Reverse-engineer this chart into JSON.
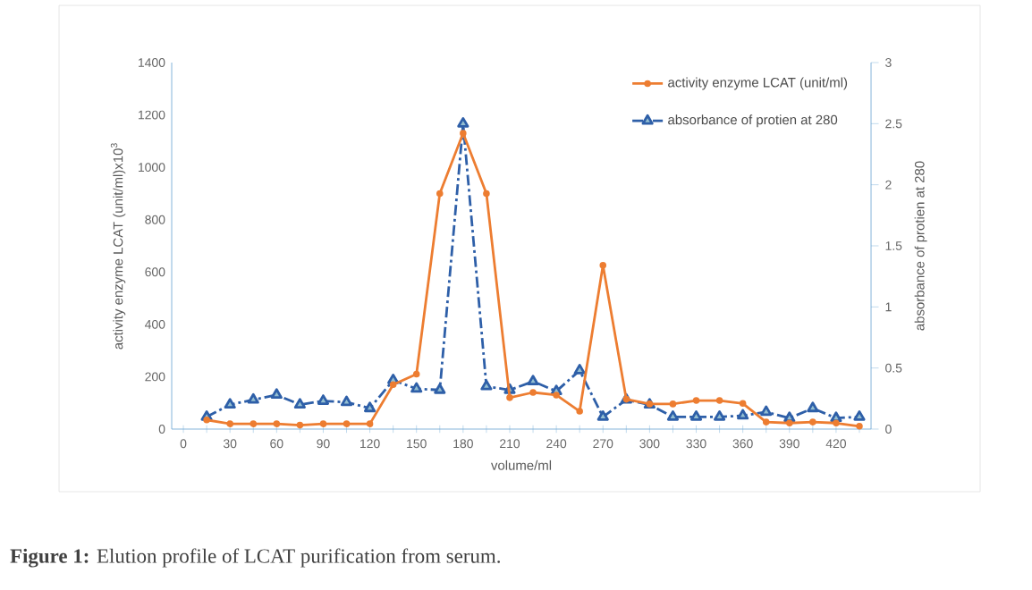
{
  "chart_data": {
    "type": "line",
    "xlabel": "volume/ml",
    "ylabel": "activity enzyme LCAT (unit/ml)x10$^{3}$",
    "y2label": "absorbance of protien at 280",
    "x": [
      15,
      30,
      45,
      60,
      75,
      90,
      105,
      120,
      135,
      150,
      165,
      180,
      195,
      210,
      225,
      240,
      255,
      270,
      285,
      300,
      315,
      330,
      345,
      360,
      375,
      390,
      405,
      420,
      435
    ],
    "series": [
      {
        "name": "activity enzyme LCAT (unit/ml)",
        "color": "#ed7d31",
        "marker": "circle",
        "line_style": "solid",
        "values": [
          35,
          20,
          20,
          20,
          15,
          20,
          20,
          20,
          170,
          210,
          900,
          1130,
          900,
          120,
          140,
          130,
          68,
          626,
          114,
          96,
          96,
          109,
          109,
          98,
          27,
          23,
          27,
          23,
          11
        ]
      },
      {
        "name": "absorbance of protien at 280",
        "color": "#2e5fa8",
        "marker": "triangle",
        "line_style": "dashed",
        "axis": "y2",
        "values": [
          0.1,
          0.2,
          0.24,
          0.28,
          0.2,
          0.23,
          0.22,
          0.17,
          0.4,
          0.33,
          0.32,
          2.5,
          0.35,
          0.32,
          0.39,
          0.31,
          0.48,
          0.1,
          0.24,
          0.2,
          0.1,
          0.1,
          0.1,
          0.11,
          0.14,
          0.09,
          0.17,
          0.09,
          0.1
        ]
      }
    ],
    "xlim": [
      -7.5,
      442.5
    ],
    "xticks": [
      0,
      {
        "value": 15,
        "label": null
      },
      30,
      {
        "value": 45,
        "label": null
      },
      60,
      {
        "value": 75,
        "label": null
      },
      90,
      {
        "value": 105,
        "label": null
      },
      120,
      {
        "value": 135,
        "label": null
      },
      150,
      {
        "value": 165,
        "label": null
      },
      180,
      {
        "value": 195,
        "label": null
      },
      210,
      {
        "value": 225,
        "label": null
      },
      240,
      {
        "value": 255,
        "label": null
      },
      270,
      {
        "value": 285,
        "label": null
      },
      300,
      {
        "value": 315,
        "label": null
      },
      330,
      {
        "value": 345,
        "label": null
      },
      360,
      {
        "value": 375,
        "label": null
      },
      390,
      {
        "value": 405,
        "label": null
      },
      420,
      {
        "value": 435,
        "label": null
      }
    ],
    "ylim": [
      0,
      1400
    ],
    "yticks": [
      0,
      200,
      400,
      600,
      800,
      1000,
      1200,
      1400
    ],
    "y2lim": [
      0,
      3
    ],
    "y2ticks": [
      0,
      0.5,
      1,
      1.5,
      2,
      2.5,
      3
    ],
    "legend": "top right",
    "grid": false,
    "annotations": [
      "**Figure 1:** Elution profile of LCAT purification from  serum."
    ]
  }
}
